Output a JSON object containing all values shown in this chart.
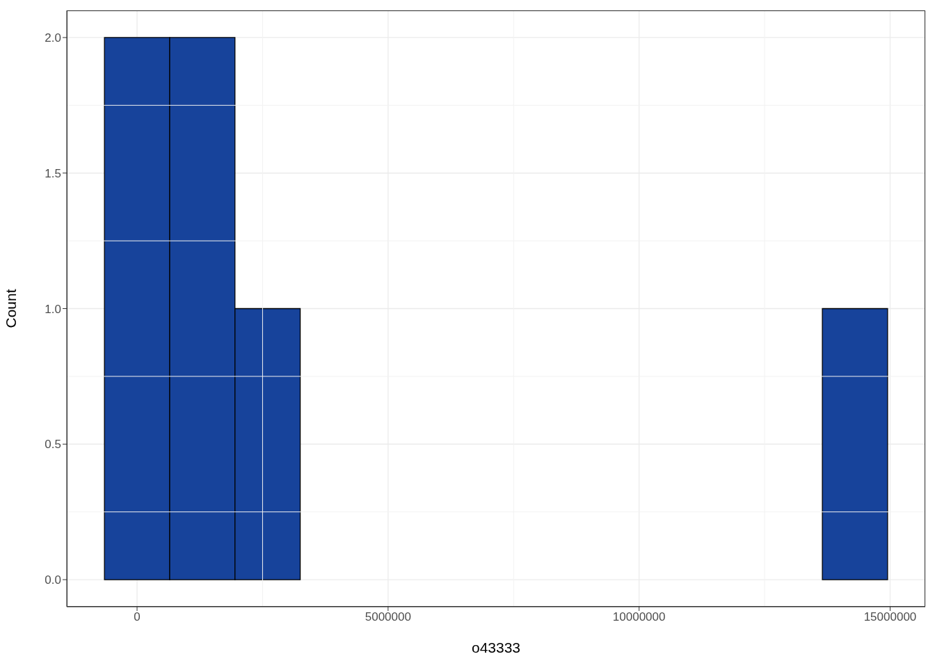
{
  "chart_data": {
    "type": "histogram",
    "xlabel": "o43333",
    "ylabel": "Count",
    "bins": [
      -650000,
      650000,
      1950000,
      3250000,
      4550000,
      5850000,
      7150000,
      8450000,
      9750000,
      11050000,
      12350000,
      13650000,
      14950000
    ],
    "values": [
      2,
      2,
      1,
      0,
      0,
      0,
      0,
      0,
      0,
      0,
      0,
      1
    ],
    "color": "#17439b",
    "xlim": [
      -1400000,
      15700000
    ],
    "xticks": [
      0,
      5000000,
      10000000,
      15000000
    ],
    "ylim": [
      -0.1,
      2.1
    ],
    "yticks": [
      {
        "value": 0,
        "label": "0.0"
      },
      {
        "value": 0.5,
        "label": "0.5"
      },
      {
        "value": 1,
        "label": "1.0"
      },
      {
        "value": 1.5,
        "label": "1.5"
      },
      {
        "value": 2,
        "label": "2.0"
      }
    ],
    "grid": true
  }
}
